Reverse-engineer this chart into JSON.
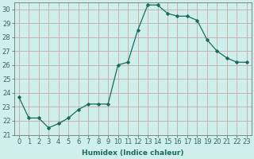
{
  "x": [
    0,
    1,
    2,
    3,
    4,
    5,
    6,
    7,
    8,
    9,
    10,
    11,
    12,
    13,
    14,
    15,
    16,
    17,
    18,
    19,
    20,
    21,
    22,
    23
  ],
  "y": [
    23.7,
    22.2,
    22.2,
    21.5,
    21.8,
    22.2,
    22.8,
    23.2,
    23.2,
    23.2,
    26.0,
    26.2,
    28.5,
    30.3,
    30.3,
    29.7,
    29.5,
    29.5,
    29.2,
    27.8,
    27.0,
    26.5,
    26.2,
    26.2
  ],
  "line_color": "#1a6b5a",
  "marker": "D",
  "marker_size": 2.0,
  "bg_color": "#cff0ea",
  "plot_bg_color": "#cff0ea",
  "grid_color": "#c8a8a8",
  "axis_color": "#777777",
  "tick_color": "#336666",
  "xlabel": "Humidex (Indice chaleur)",
  "ylim": [
    21,
    30.5
  ],
  "xlim": [
    -0.5,
    23.5
  ],
  "yticks": [
    21,
    22,
    23,
    24,
    25,
    26,
    27,
    28,
    29,
    30
  ],
  "xticks": [
    0,
    1,
    2,
    3,
    4,
    5,
    6,
    7,
    8,
    9,
    10,
    11,
    12,
    13,
    14,
    15,
    16,
    17,
    18,
    19,
    20,
    21,
    22,
    23
  ],
  "label_fontsize": 6.5,
  "tick_fontsize": 6.0
}
